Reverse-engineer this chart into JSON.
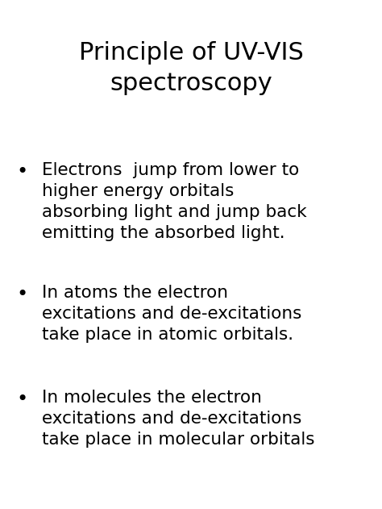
{
  "title_line1": "Principle of UV-VIS",
  "title_line2": "spectroscopy",
  "background_color": "#ffffff",
  "text_color": "#000000",
  "title_fontsize": 22,
  "body_fontsize": 15.5,
  "bullet_points": [
    "Electrons  jump from lower to\nhigher energy orbitals\nabsorbing light and jump back\nemitting the absorbed light.",
    "In atoms the electron\nexcitations and de-excitations\ntake place in atomic orbitals.",
    "In molecules the electron\nexcitations and de-excitations\ntake place in molecular orbitals"
  ],
  "bullet_char": "•",
  "font_family": "DejaVu Sans"
}
